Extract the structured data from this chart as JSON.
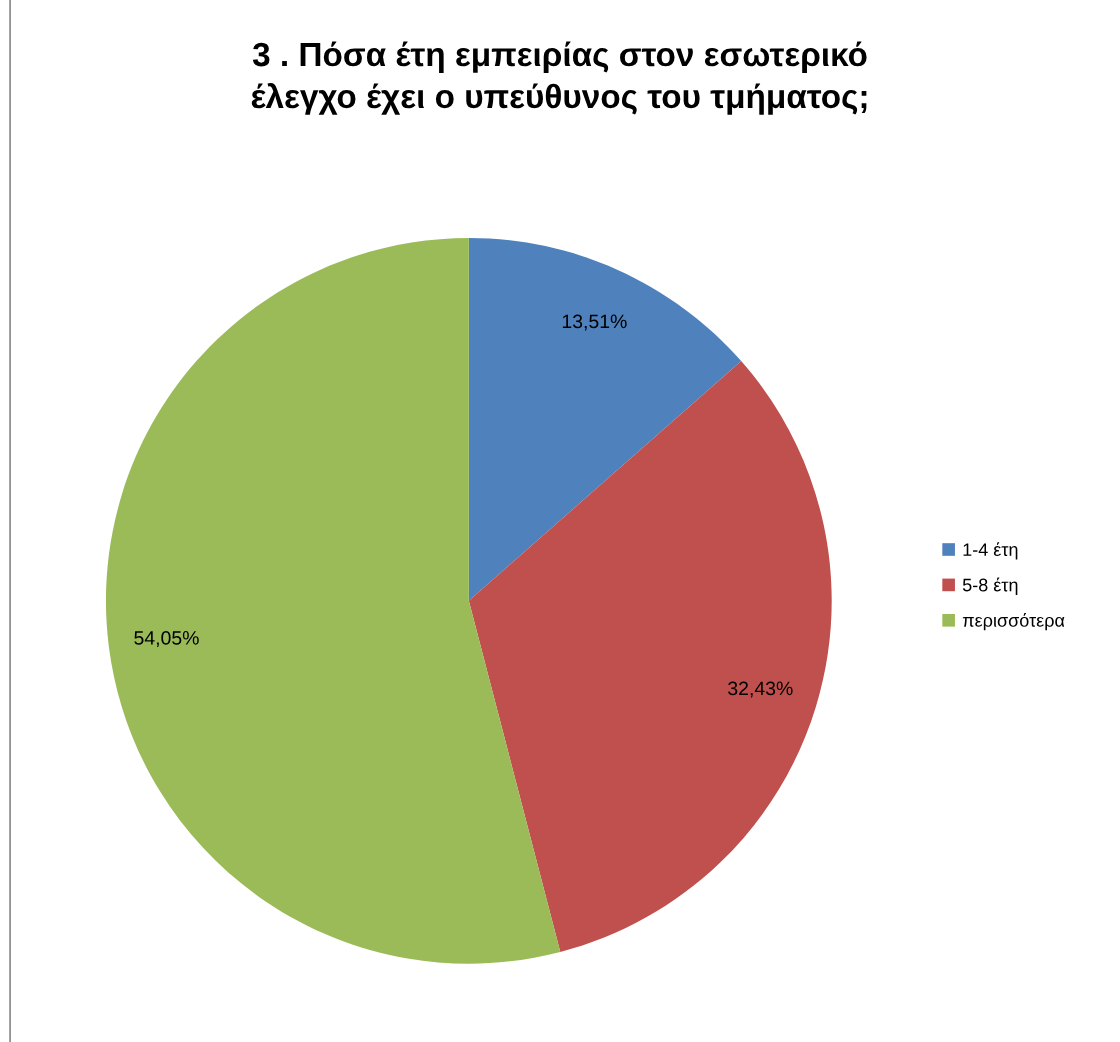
{
  "chart_data": {
    "type": "pie",
    "title": "3 . Πόσα έτη εμπειρίας στον εσωτερικό\nέλεγχο έχει ο υπεύθυνος του τμήματος;",
    "categories": [
      "1-4 έτη",
      "5-8 έτη",
      "περισσότερα"
    ],
    "values": [
      13.51,
      32.43,
      54.05
    ],
    "colors": [
      "#4f81bd",
      "#c0504d",
      "#9bbb59"
    ],
    "value_labels": [
      "13,51%",
      "32,43%",
      "54,05%"
    ],
    "legend": "right"
  }
}
